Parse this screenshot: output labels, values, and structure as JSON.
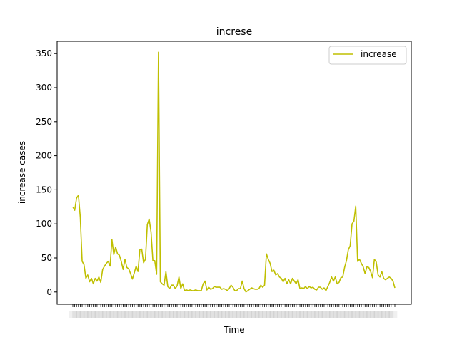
{
  "chart_data": {
    "type": "line",
    "title": "increse",
    "xlabel": "Time",
    "ylabel": "increase cases",
    "ylim": [
      -18,
      368
    ],
    "yticks": [
      0,
      50,
      100,
      150,
      200,
      250,
      300,
      350
    ],
    "ytick_labels": [
      "0",
      "50",
      "100",
      "150",
      "200",
      "250",
      "300",
      "350"
    ],
    "x_ticks_note": "overlapping date labels, illegible",
    "legend": {
      "placement": "top-right",
      "entries": [
        "increase"
      ]
    },
    "grid": false,
    "series": [
      {
        "name": "increase",
        "color": "#bfbf00",
        "values": [
          125,
          120,
          138,
          142,
          110,
          45,
          40,
          20,
          25,
          15,
          20,
          12,
          20,
          16,
          22,
          14,
          33,
          38,
          42,
          45,
          38,
          77,
          55,
          66,
          56,
          54,
          45,
          33,
          48,
          36,
          34,
          27,
          19,
          28,
          38,
          30,
          62,
          63,
          43,
          48,
          99,
          107,
          88,
          46,
          46,
          26,
          352,
          15,
          12,
          10,
          30,
          8,
          5,
          10,
          10,
          5,
          9,
          22,
          5,
          12,
          2,
          3,
          2,
          3,
          2,
          2,
          3,
          2,
          2,
          2,
          12,
          16,
          3,
          7,
          4,
          5,
          8,
          7,
          7,
          7,
          4,
          5,
          4,
          2,
          5,
          10,
          7,
          2,
          2,
          5,
          5,
          16,
          5,
          0,
          2,
          4,
          6,
          5,
          4,
          4,
          5,
          10,
          7,
          10,
          56,
          48,
          42,
          30,
          32,
          25,
          27,
          22,
          20,
          15,
          20,
          12,
          18,
          12,
          20,
          16,
          12,
          18,
          5,
          6,
          5,
          8,
          5,
          8,
          6,
          7,
          4,
          3,
          7,
          7,
          4,
          6,
          2,
          8,
          14,
          22,
          16,
          22,
          12,
          14,
          21,
          22,
          36,
          46,
          62,
          68,
          100,
          104,
          126,
          45,
          48,
          42,
          37,
          27,
          37,
          36,
          30,
          21,
          48,
          44,
          25,
          22,
          30,
          20,
          18,
          20,
          22,
          20,
          16,
          6
        ]
      }
    ]
  }
}
